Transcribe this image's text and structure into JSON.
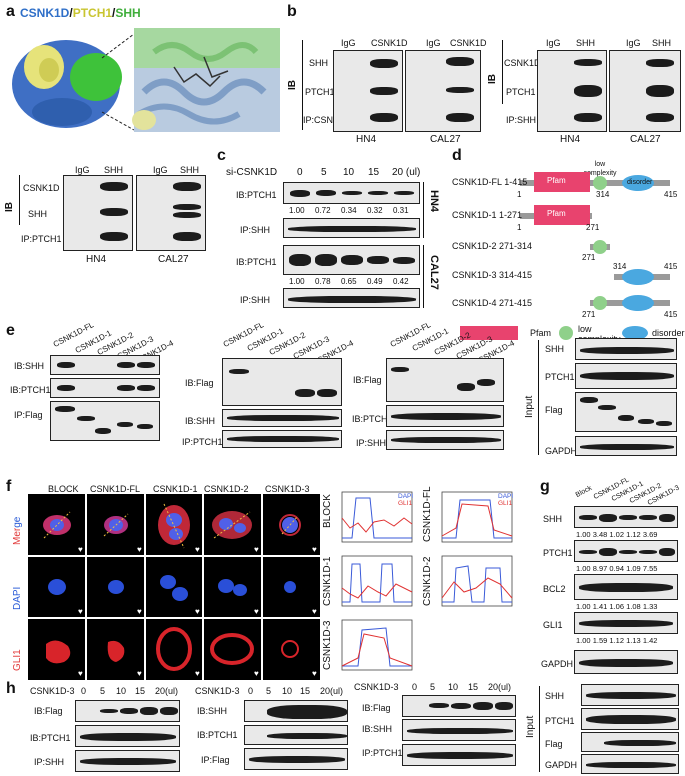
{
  "panels": {
    "a": {
      "label": "a",
      "title_parts": [
        "CSNK1D",
        "/",
        "PTCH1",
        "/",
        "SHH"
      ],
      "title_colors": [
        "#2f6fc8",
        "#111111",
        "#d9d53a",
        "#111111",
        "#3fae3b"
      ]
    },
    "b": {
      "label": "b",
      "ib": "IB",
      "left": {
        "cols": [
          "IgG",
          "CSNK1D",
          "IgG",
          "CSNK1D"
        ],
        "rows": [
          "SHH",
          "PTCH1",
          "IP:CSNK1D"
        ],
        "cells": [
          "HN4",
          "CAL27"
        ]
      },
      "right": {
        "cols": [
          "IgG",
          "SHH",
          "IgG",
          "SHH"
        ],
        "rows": [
          "CSNK1D",
          "PTCH1",
          "IP:SHH"
        ],
        "cells": [
          "HN4",
          "CAL27"
        ]
      }
    },
    "b2": {
      "ib": "IB",
      "cols": [
        "IgG",
        "SHH",
        "IgG",
        "SHH"
      ],
      "rows": [
        "CSNK1D",
        "SHH",
        "IP:PTCH1"
      ],
      "cells": [
        "HN4",
        "CAL27"
      ]
    },
    "c": {
      "label": "c",
      "treatment": "si-CSNK1D",
      "doses": [
        "0",
        "5",
        "10",
        "15",
        "20 (ul)"
      ],
      "rows": [
        "IB:PTCH1",
        "IP:SHH",
        "IB:PTCH1",
        "IP:SHH"
      ],
      "quant_hn4": [
        "1.00",
        "0.72",
        "0.34",
        "0.32",
        "0.31"
      ],
      "quant_cal27": [
        "1.00",
        "0.78",
        "0.65",
        "0.49",
        "0.42"
      ],
      "cells": [
        "HN4",
        "CAL27"
      ]
    },
    "d": {
      "label": "d",
      "constructs": [
        {
          "name": "CSNK1D-FL",
          "range": "1-415"
        },
        {
          "name": "CSNK1D-1",
          "range": "1-271"
        },
        {
          "name": "CSNK1D-2",
          "range": "271-314"
        },
        {
          "name": "CSNK1D-3",
          "range": "314-415"
        },
        {
          "name": "CSNK1D-4",
          "range": "271-415"
        }
      ],
      "domain_pfam": "Pfam",
      "domain_low": "low complexity",
      "domain_disorder": "disorder",
      "positions": [
        "1",
        "271",
        "314",
        "415"
      ],
      "legend": [
        "Pfam",
        "low complexity",
        "disorder"
      ],
      "colors": {
        "pfam": "#e8436e",
        "low": "#8fd08a",
        "disorder": "#4aa8e0"
      }
    },
    "e": {
      "label": "e",
      "lanes": [
        "CSNK1D-FL",
        "CSNK1D-1",
        "CSNK1D-2",
        "CSNK1D-3",
        "CSNK1D-4"
      ],
      "g1_rows": [
        "IB:SHH",
        "IB:PTCH1",
        "IP:Flag"
      ],
      "g2_rows": [
        "IB:Flag",
        "IB:SHH",
        "IP:PTCH1"
      ],
      "g3_rows": [
        "IB:Flag",
        "IB:PTCH1",
        "IP:SHH"
      ],
      "input_label": "Input",
      "input_rows": [
        "SHH",
        "PTCH1",
        "Flag",
        "GAPDH"
      ]
    },
    "f": {
      "label": "f",
      "cols": [
        "BLOCK",
        "CSNK1D-FL",
        "CSNK1D-1",
        "CSNK1D-2",
        "CSNK1D-3"
      ],
      "row_merge": [
        "Mer",
        "ge"
      ],
      "row_dapi": "DAPI",
      "row_gli": "GLI1",
      "plots": [
        "BLOCK",
        "CSNK1D-FL",
        "CSNK1D-1",
        "CSNK1D-2",
        "CSNK1D-3"
      ],
      "plot_legend": [
        "DAPI",
        "GLI1"
      ],
      "colors": {
        "merge_a": "#e23b3b",
        "merge_b": "#2a5bd7",
        "dapi": "#4a7de0",
        "gli": "#e03232"
      }
    },
    "g": {
      "label": "g",
      "lanes": [
        "Block",
        "CSNK1D-FL",
        "CSNK1D-1",
        "CSNK1D-2",
        "CSNK1D-3"
      ],
      "rows": [
        {
          "name": "SHH",
          "quant": [
            "1.00",
            "3.48",
            "1.02",
            "1.12",
            "3.69"
          ]
        },
        {
          "name": "PTCH1",
          "quant": [
            "1.00",
            "8.97",
            "0.94",
            "1.09",
            "7.55"
          ]
        },
        {
          "name": "BCL2",
          "quant": [
            "1.00",
            "1.41",
            "1.06",
            "1.08",
            "1.33"
          ]
        },
        {
          "name": "GLI1",
          "quant": [
            "1.00",
            "1.59",
            "1.12",
            "1.13",
            "1.42"
          ]
        },
        {
          "name": "GAPDH",
          "quant": []
        }
      ]
    },
    "h": {
      "label": "h",
      "construct": "CSNK1D-3",
      "doses": [
        "0",
        "5",
        "10",
        "15",
        "20(ul)"
      ],
      "g1_rows": [
        "IB:Flag",
        "IB:PTCH1",
        "IP:SHH"
      ],
      "g2_rows": [
        "IB:SHH",
        "IB:PTCH1",
        "IP:Flag"
      ],
      "g3_rows": [
        "IB:Flag",
        "IB:SHH",
        "IP:PTCH1"
      ],
      "input_label": "Input",
      "input_rows": [
        "SHH",
        "PTCH1",
        "Flag",
        "GAPDH"
      ]
    }
  }
}
